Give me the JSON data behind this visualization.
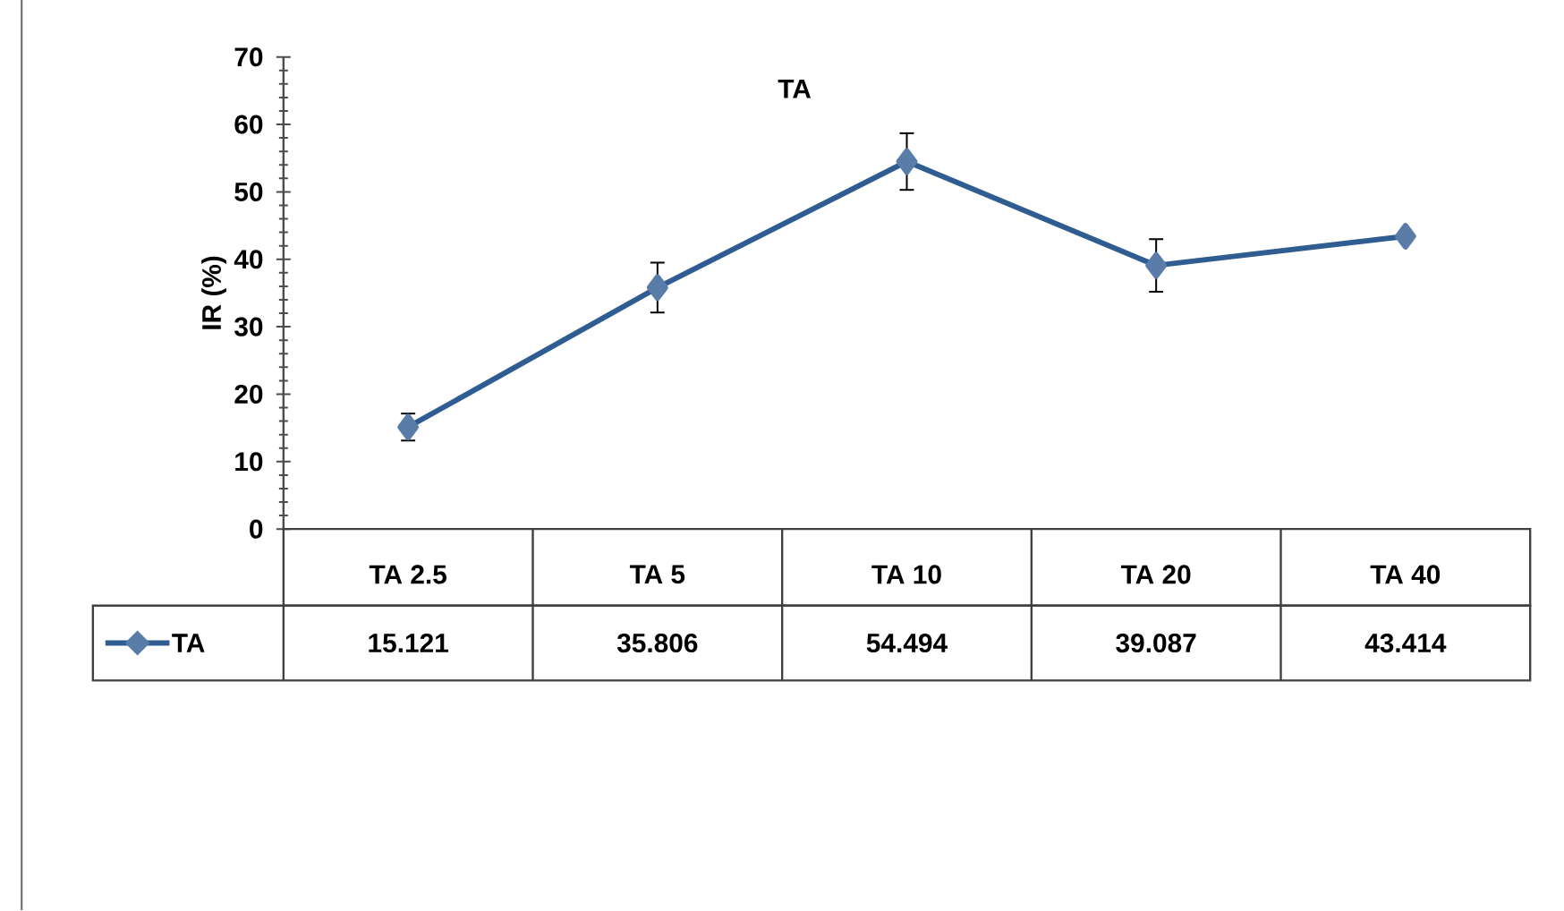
{
  "chart_data": {
    "type": "line",
    "title": "TA",
    "ylabel": "IR (%)",
    "categories": [
      "TA 2.5",
      "TA 5",
      "TA 10",
      "TA 20",
      "TA 40"
    ],
    "series": [
      {
        "name": "TA",
        "color": "#2f5d92",
        "values": [
          15.121,
          35.806,
          54.494,
          39.087,
          43.414
        ],
        "errors": [
          2,
          3.7,
          4.2,
          3.9,
          null
        ]
      }
    ],
    "ylim": [
      0,
      70
    ],
    "yticks": [
      0,
      10,
      20,
      30,
      40,
      50,
      60,
      70
    ],
    "marker": "diamond",
    "line_style": "solid",
    "data_labels": true,
    "legend": "bottom left",
    "grid": false
  }
}
